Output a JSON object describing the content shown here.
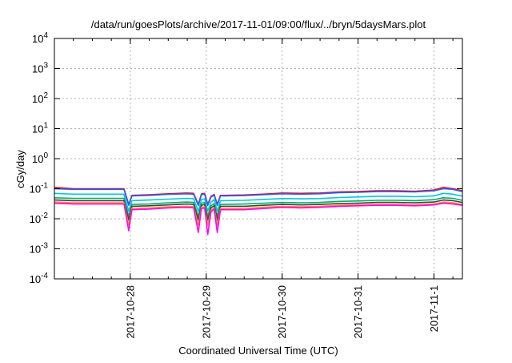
{
  "chart_data": {
    "type": "line",
    "title": "/data/run/goesPlots/archive/2017-11-01/09:00/flux/../bryn/5daysMars.plot",
    "xlabel": "Coordinated Universal Time (UTC)",
    "ylabel": "cGy/day",
    "yscale": "log",
    "ylim": [
      0.0001,
      10000
    ],
    "xlim": [
      "2017-10-27T00:00",
      "2017-11-01T09:00"
    ],
    "grid": true,
    "x_tick_labels": [
      "2017-10-28",
      "2017-10-29",
      "2017-10-30",
      "2017-10-31",
      "2017-11-1"
    ],
    "y_ticks": [
      {
        "base": "10",
        "exp": "-4",
        "value": 0.0001
      },
      {
        "base": "10",
        "exp": "-3",
        "value": 0.001
      },
      {
        "base": "10",
        "exp": "-2",
        "value": 0.01
      },
      {
        "base": "10",
        "exp": "-1",
        "value": 0.1
      },
      {
        "base": "10",
        "exp": "0",
        "value": 1
      },
      {
        "base": "10",
        "exp": "1",
        "value": 10
      },
      {
        "base": "10",
        "exp": "2",
        "value": 100
      },
      {
        "base": "10",
        "exp": "3",
        "value": 1000
      },
      {
        "base": "10",
        "exp": "4",
        "value": 10000
      }
    ],
    "x": [
      "2017-10-27T00:00",
      "2017-10-27T06:00",
      "2017-10-27T12:00",
      "2017-10-27T18:00",
      "2017-10-27T22:00",
      "2017-10-27T23:30",
      "2017-10-28T00:30",
      "2017-10-28T06:00",
      "2017-10-28T12:00",
      "2017-10-28T18:00",
      "2017-10-28T20:00",
      "2017-10-28T21:30",
      "2017-10-28T22:30",
      "2017-10-28T23:30",
      "2017-10-29T00:30",
      "2017-10-29T01:30",
      "2017-10-29T02:30",
      "2017-10-29T03:30",
      "2017-10-29T04:30",
      "2017-10-29T05:30",
      "2017-10-29T12:00",
      "2017-10-29T18:00",
      "2017-10-30T00:00",
      "2017-10-30T06:00",
      "2017-10-30T12:00",
      "2017-10-30T18:00",
      "2017-10-31T00:00",
      "2017-10-31T06:00",
      "2017-10-31T12:00",
      "2017-10-31T18:00",
      "2017-11-01T00:00",
      "2017-11-01T03:00",
      "2017-11-01T06:00",
      "2017-11-01T09:00"
    ],
    "series": [
      {
        "color": "#ff0000",
        "values": [
          0.11,
          0.1,
          0.1,
          0.1,
          0.1,
          0.03,
          0.06,
          0.063,
          0.068,
          0.072,
          0.07,
          0.03,
          0.067,
          0.07,
          0.03,
          0.055,
          0.065,
          0.03,
          0.06,
          0.06,
          0.062,
          0.066,
          0.072,
          0.07,
          0.072,
          0.078,
          0.08,
          0.085,
          0.085,
          0.082,
          0.09,
          0.11,
          0.1,
          0.085
        ]
      },
      {
        "color": "#2060ff",
        "values": [
          0.1,
          0.095,
          0.095,
          0.095,
          0.095,
          0.028,
          0.058,
          0.06,
          0.065,
          0.068,
          0.066,
          0.028,
          0.063,
          0.066,
          0.028,
          0.052,
          0.062,
          0.028,
          0.058,
          0.058,
          0.059,
          0.063,
          0.068,
          0.066,
          0.068,
          0.074,
          0.076,
          0.08,
          0.08,
          0.078,
          0.085,
          0.1,
          0.095,
          0.08
        ]
      },
      {
        "color": "#00c8e0",
        "values": [
          0.07,
          0.066,
          0.066,
          0.066,
          0.066,
          0.018,
          0.04,
          0.042,
          0.045,
          0.048,
          0.046,
          0.018,
          0.044,
          0.046,
          0.018,
          0.036,
          0.043,
          0.018,
          0.04,
          0.04,
          0.041,
          0.044,
          0.047,
          0.046,
          0.047,
          0.051,
          0.053,
          0.056,
          0.056,
          0.054,
          0.058,
          0.07,
          0.066,
          0.056
        ]
      },
      {
        "color": "#00b060",
        "values": [
          0.05,
          0.048,
          0.048,
          0.048,
          0.048,
          0.012,
          0.03,
          0.031,
          0.034,
          0.036,
          0.035,
          0.012,
          0.033,
          0.035,
          0.012,
          0.027,
          0.032,
          0.012,
          0.03,
          0.03,
          0.031,
          0.033,
          0.035,
          0.034,
          0.035,
          0.038,
          0.039,
          0.041,
          0.041,
          0.04,
          0.043,
          0.05,
          0.048,
          0.041
        ]
      },
      {
        "color": "#404040",
        "values": [
          0.042,
          0.04,
          0.04,
          0.04,
          0.04,
          0.009,
          0.026,
          0.027,
          0.029,
          0.031,
          0.03,
          0.009,
          0.028,
          0.03,
          0.009,
          0.023,
          0.027,
          0.009,
          0.026,
          0.026,
          0.026,
          0.028,
          0.03,
          0.029,
          0.03,
          0.032,
          0.033,
          0.035,
          0.035,
          0.034,
          0.036,
          0.042,
          0.04,
          0.035
        ]
      },
      {
        "color": "#ff9020",
        "values": [
          0.036,
          0.034,
          0.034,
          0.034,
          0.034,
          0.006,
          0.022,
          0.023,
          0.025,
          0.026,
          0.025,
          0.006,
          0.024,
          0.025,
          0.006,
          0.019,
          0.023,
          0.006,
          0.022,
          0.022,
          0.022,
          0.024,
          0.026,
          0.025,
          0.026,
          0.028,
          0.029,
          0.03,
          0.03,
          0.029,
          0.031,
          0.036,
          0.034,
          0.03
        ]
      },
      {
        "color": "#ff00ff",
        "values": [
          0.033,
          0.031,
          0.031,
          0.031,
          0.031,
          0.004,
          0.02,
          0.021,
          0.023,
          0.024,
          0.023,
          0.0035,
          0.022,
          0.023,
          0.003,
          0.017,
          0.021,
          0.0035,
          0.02,
          0.02,
          0.02,
          0.022,
          0.024,
          0.023,
          0.024,
          0.026,
          0.027,
          0.028,
          0.028,
          0.027,
          0.029,
          0.033,
          0.031,
          0.028
        ]
      }
    ]
  }
}
